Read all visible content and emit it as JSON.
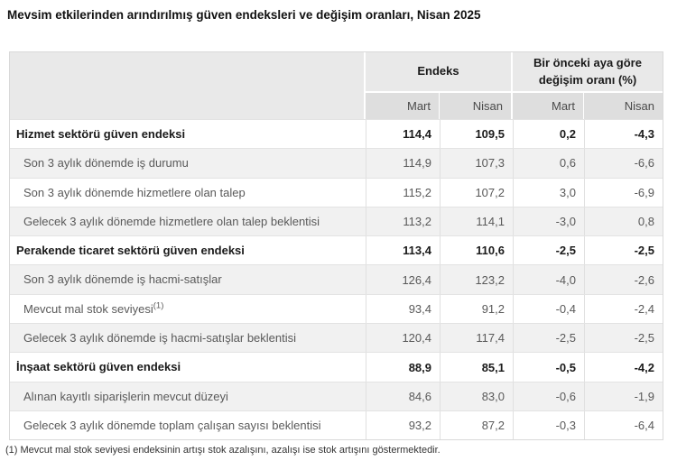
{
  "title": "Mevsim etkilerinden arındırılmış güven endeksleri ve değişim oranları, Nisan 2025",
  "table": {
    "col_groups": [
      {
        "label": "Endeks"
      },
      {
        "label": "Bir önceki aya göre değişim oranı (%)"
      }
    ],
    "sub_headers": [
      "Mart",
      "Nisan",
      "Mart",
      "Nisan"
    ],
    "rows": [
      {
        "label": "Hizmet sektörü güven endeksi",
        "bold": true,
        "values": [
          "114,4",
          "109,5",
          "0,2",
          "-4,3"
        ]
      },
      {
        "label": "Son 3 aylık dönemde iş durumu",
        "bold": false,
        "values": [
          "114,9",
          "107,3",
          "0,6",
          "-6,6"
        ]
      },
      {
        "label": "Son 3 aylık dönemde hizmetlere olan talep",
        "bold": false,
        "values": [
          "115,2",
          "107,2",
          "3,0",
          "-6,9"
        ]
      },
      {
        "label": "Gelecek 3 aylık dönemde hizmetlere olan talep beklentisi",
        "bold": false,
        "values": [
          "113,2",
          "114,1",
          "-3,0",
          "0,8"
        ]
      },
      {
        "label": "Perakende ticaret sektörü güven endeksi",
        "bold": true,
        "values": [
          "113,4",
          "110,6",
          "-2,5",
          "-2,5"
        ]
      },
      {
        "label": "Son 3 aylık dönemde iş hacmi-satışlar",
        "bold": false,
        "values": [
          "126,4",
          "123,2",
          "-4,0",
          "-2,6"
        ]
      },
      {
        "label": "Mevcut mal stok seviyesi",
        "sup": "(1)",
        "bold": false,
        "values": [
          "93,4",
          "91,2",
          "-0,4",
          "-2,4"
        ]
      },
      {
        "label": "Gelecek 3 aylık dönemde iş hacmi-satışlar beklentisi",
        "bold": false,
        "values": [
          "120,4",
          "117,4",
          "-2,5",
          "-2,5"
        ]
      },
      {
        "label": "İnşaat sektörü güven endeksi",
        "bold": true,
        "values": [
          "88,9",
          "85,1",
          "-0,5",
          "-4,2"
        ]
      },
      {
        "label": "Alınan kayıtlı siparişlerin mevcut düzeyi",
        "bold": false,
        "values": [
          "84,6",
          "83,0",
          "-0,6",
          "-1,9"
        ]
      },
      {
        "label": "Gelecek 3 aylık dönemde toplam çalışan sayısı beklentisi",
        "bold": false,
        "values": [
          "93,2",
          "87,2",
          "-0,3",
          "-6,4"
        ]
      }
    ]
  },
  "footnote": "(1) Mevcut mal stok seviyesi endeksinin artışı stok azalışını, azalışı ise stok artışını göstermektedir.",
  "colors": {
    "header_bg": "#e9e9e9",
    "subheader_bg": "#dedede",
    "stripe_bg": "#f1f1f1",
    "section_text": "#1a1a1a",
    "subrow_text": "#595959"
  }
}
